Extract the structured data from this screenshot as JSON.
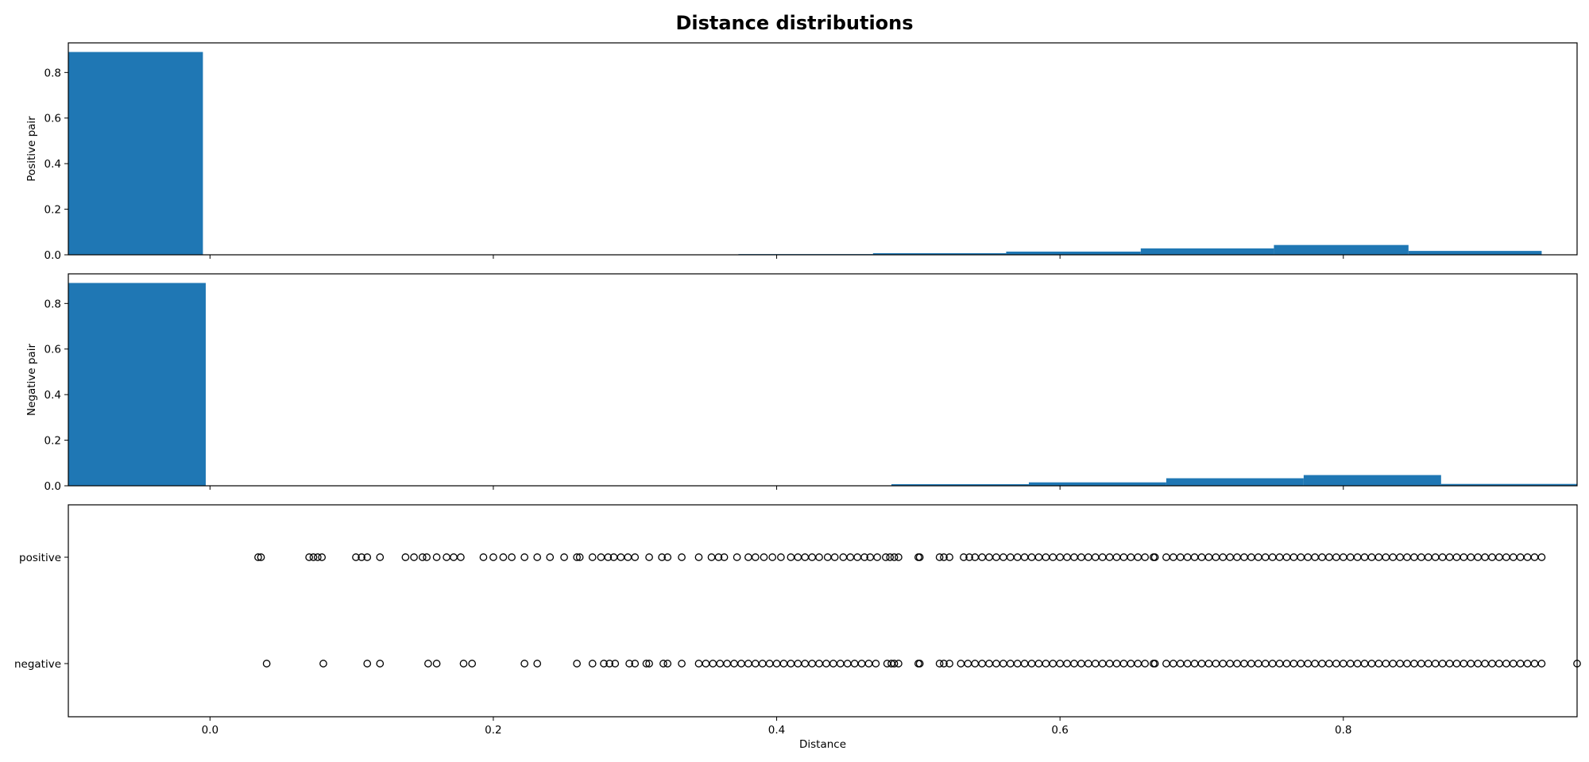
{
  "chart_data": {
    "title": "Distance distributions",
    "shared_x": {
      "label": "Distance",
      "lim": [
        -0.1,
        0.965
      ],
      "ticks": [
        0.0,
        0.2,
        0.4,
        0.6,
        0.8
      ],
      "tick_labels": [
        "0.0",
        "0.2",
        "0.4",
        "0.6",
        "0.8"
      ]
    },
    "panels": [
      {
        "type": "bar",
        "ylabel": "Positive pair",
        "ylim": [
          0,
          0.93
        ],
        "yticks": [
          0.0,
          0.2,
          0.4,
          0.6,
          0.8
        ],
        "ytick_labels": [
          "0.0",
          "0.2",
          "0.4",
          "0.6",
          "0.8"
        ],
        "color": "#1f77b4",
        "bins": [
          {
            "start": -0.1,
            "end": -0.005,
            "value": 0.89
          },
          {
            "start": -0.005,
            "end": 0.09,
            "value": 0.0
          },
          {
            "start": 0.09,
            "end": 0.184,
            "value": 0.0
          },
          {
            "start": 0.184,
            "end": 0.279,
            "value": 0.0
          },
          {
            "start": 0.279,
            "end": 0.373,
            "value": 0.0
          },
          {
            "start": 0.373,
            "end": 0.468,
            "value": 0.003
          },
          {
            "start": 0.468,
            "end": 0.562,
            "value": 0.007
          },
          {
            "start": 0.562,
            "end": 0.657,
            "value": 0.014
          },
          {
            "start": 0.657,
            "end": 0.751,
            "value": 0.028
          },
          {
            "start": 0.751,
            "end": 0.846,
            "value": 0.043
          },
          {
            "start": 0.846,
            "end": 0.94,
            "value": 0.017
          }
        ]
      },
      {
        "type": "bar",
        "ylabel": "Negative pair",
        "ylim": [
          0,
          0.93
        ],
        "yticks": [
          0.0,
          0.2,
          0.4,
          0.6,
          0.8
        ],
        "ytick_labels": [
          "0.0",
          "0.2",
          "0.4",
          "0.6",
          "0.8"
        ],
        "color": "#1f77b4",
        "bins": [
          {
            "start": -0.1,
            "end": -0.003,
            "value": 0.89
          },
          {
            "start": -0.003,
            "end": 0.094,
            "value": 0.0
          },
          {
            "start": 0.094,
            "end": 0.191,
            "value": 0.0
          },
          {
            "start": 0.191,
            "end": 0.288,
            "value": 0.0
          },
          {
            "start": 0.288,
            "end": 0.385,
            "value": 0.0
          },
          {
            "start": 0.385,
            "end": 0.481,
            "value": 0.0
          },
          {
            "start": 0.481,
            "end": 0.578,
            "value": 0.007
          },
          {
            "start": 0.578,
            "end": 0.675,
            "value": 0.015
          },
          {
            "start": 0.675,
            "end": 0.772,
            "value": 0.033
          },
          {
            "start": 0.772,
            "end": 0.869,
            "value": 0.047
          },
          {
            "start": 0.869,
            "end": 0.965,
            "value": 0.008
          }
        ]
      },
      {
        "type": "scatter",
        "categories": [
          "positive",
          "negative"
        ],
        "marker": "open-circle",
        "series": [
          {
            "name": "positive",
            "x": [
              0.034,
              0.036,
              0.07,
              0.073,
              0.076,
              0.079,
              0.103,
              0.107,
              0.111,
              0.12,
              0.138,
              0.144,
              0.15,
              0.153,
              0.16,
              0.167,
              0.172,
              0.177,
              0.193,
              0.2,
              0.207,
              0.213,
              0.222,
              0.231,
              0.24,
              0.25,
              0.259,
              0.261,
              0.27,
              0.276,
              0.281,
              0.285,
              0.29,
              0.295,
              0.3,
              0.31,
              0.319,
              0.323,
              0.333,
              0.345,
              0.354,
              0.359,
              0.363,
              0.372,
              0.38,
              0.385,
              0.391,
              0.397,
              0.403,
              0.41,
              0.415,
              0.42,
              0.425,
              0.43,
              0.436,
              0.441,
              0.447,
              0.452,
              0.457,
              0.462,
              0.466,
              0.471,
              0.477,
              0.48,
              0.483,
              0.486,
              0.5,
              0.501,
              0.515,
              0.518,
              0.522,
              0.532,
              0.536,
              0.54,
              0.545,
              0.55,
              0.555,
              0.56,
              0.565,
              0.57,
              0.575,
              0.58,
              0.585,
              0.59,
              0.595,
              0.6,
              0.605,
              0.61,
              0.615,
              0.62,
              0.625,
              0.63,
              0.635,
              0.64,
              0.645,
              0.65,
              0.655,
              0.66,
              0.666,
              0.667,
              0.675,
              0.68,
              0.685,
              0.69,
              0.695,
              0.7,
              0.705,
              0.71,
              0.715,
              0.72,
              0.725,
              0.73,
              0.735,
              0.74,
              0.745,
              0.75,
              0.755,
              0.76,
              0.765,
              0.77,
              0.775,
              0.78,
              0.785,
              0.79,
              0.795,
              0.8,
              0.805,
              0.81,
              0.815,
              0.82,
              0.825,
              0.83,
              0.835,
              0.84,
              0.845,
              0.85,
              0.855,
              0.86,
              0.865,
              0.87,
              0.875,
              0.88,
              0.885,
              0.89,
              0.895,
              0.9,
              0.905,
              0.91,
              0.915,
              0.92,
              0.925,
              0.93,
              0.935,
              0.94
            ]
          },
          {
            "name": "negative",
            "x": [
              0.04,
              0.08,
              0.111,
              0.12,
              0.154,
              0.16,
              0.179,
              0.185,
              0.222,
              0.231,
              0.259,
              0.27,
              0.278,
              0.282,
              0.286,
              0.296,
              0.3,
              0.308,
              0.31,
              0.32,
              0.323,
              0.333,
              0.345,
              0.35,
              0.355,
              0.36,
              0.365,
              0.37,
              0.375,
              0.38,
              0.385,
              0.39,
              0.395,
              0.4,
              0.405,
              0.41,
              0.415,
              0.42,
              0.425,
              0.43,
              0.435,
              0.44,
              0.445,
              0.45,
              0.455,
              0.46,
              0.465,
              0.47,
              0.478,
              0.481,
              0.483,
              0.486,
              0.5,
              0.501,
              0.515,
              0.518,
              0.522,
              0.53,
              0.535,
              0.54,
              0.545,
              0.55,
              0.555,
              0.56,
              0.565,
              0.57,
              0.575,
              0.58,
              0.585,
              0.59,
              0.595,
              0.6,
              0.605,
              0.61,
              0.615,
              0.62,
              0.625,
              0.63,
              0.635,
              0.64,
              0.645,
              0.65,
              0.655,
              0.66,
              0.666,
              0.667,
              0.675,
              0.68,
              0.685,
              0.69,
              0.695,
              0.7,
              0.705,
              0.71,
              0.715,
              0.72,
              0.725,
              0.73,
              0.735,
              0.74,
              0.745,
              0.75,
              0.755,
              0.76,
              0.765,
              0.77,
              0.775,
              0.78,
              0.785,
              0.79,
              0.795,
              0.8,
              0.805,
              0.81,
              0.815,
              0.82,
              0.825,
              0.83,
              0.835,
              0.84,
              0.845,
              0.85,
              0.855,
              0.86,
              0.865,
              0.87,
              0.875,
              0.88,
              0.885,
              0.89,
              0.895,
              0.9,
              0.905,
              0.91,
              0.915,
              0.92,
              0.925,
              0.93,
              0.935,
              0.94,
              0.965
            ]
          }
        ]
      }
    ]
  }
}
